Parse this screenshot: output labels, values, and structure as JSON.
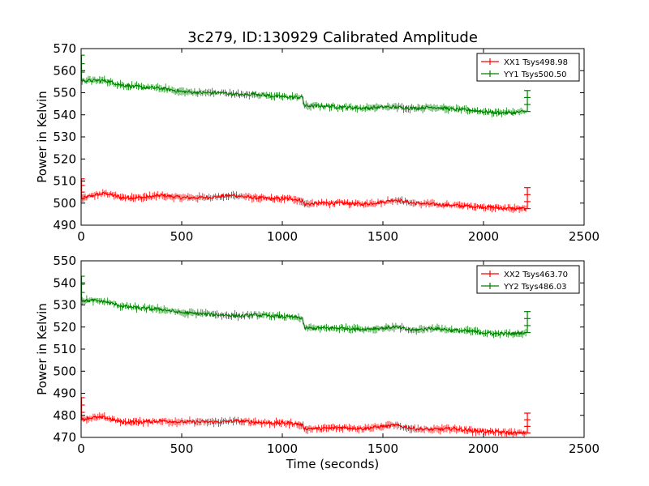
{
  "figure": {
    "title": "3c279, ID:130929 Calibrated Amplitude",
    "xlabel": "Time (seconds)"
  },
  "chart_data": [
    {
      "type": "line",
      "ylabel": "Power in Kelvin",
      "xlim": [
        0,
        2500
      ],
      "ylim": [
        490,
        570
      ],
      "xticks": [
        "0",
        "500",
        "1000",
        "1500",
        "2000",
        "2500"
      ],
      "yticks": [
        "490",
        "500",
        "510",
        "520",
        "530",
        "540",
        "550",
        "560",
        "570"
      ],
      "legend_position": "top-right",
      "grid": false,
      "series": [
        {
          "name": "XX1 Tsys498.98",
          "color": "#ff0000",
          "x": [
            5,
            20,
            60,
            120,
            200,
            300,
            400,
            500,
            600,
            700,
            760,
            850,
            950,
            1050,
            1100,
            1110,
            1200,
            1300,
            1400,
            1500,
            1560,
            1650,
            1750,
            1850,
            1950,
            2050,
            2150,
            2210
          ],
          "y": [
            502,
            502.5,
            503.5,
            504.5,
            502.5,
            502.5,
            503.5,
            502.5,
            502.5,
            503,
            503.5,
            502.5,
            502,
            502,
            501,
            499.5,
            500,
            500,
            499.5,
            500.5,
            501.5,
            500,
            499.5,
            499,
            498.5,
            498,
            497.5,
            497.5
          ],
          "spikes": [
            {
              "x": 2,
              "y": 511
            },
            {
              "x": 2218,
              "y": 507
            }
          ]
        },
        {
          "name": "YY1 Tsys500.50",
          "color": "#008000",
          "x": [
            5,
            20,
            60,
            120,
            200,
            300,
            400,
            500,
            600,
            700,
            800,
            860,
            950,
            1050,
            1100,
            1110,
            1200,
            1300,
            1400,
            1500,
            1560,
            1650,
            1750,
            1850,
            1950,
            2050,
            2150,
            2210
          ],
          "y": [
            555.5,
            555.5,
            555.5,
            555.5,
            553.5,
            552.5,
            552,
            550.5,
            550,
            550,
            549,
            549.5,
            548.5,
            548,
            548,
            544,
            544,
            543.5,
            543,
            543.5,
            543.5,
            543,
            543.5,
            542.5,
            542,
            541,
            541,
            541.5
          ],
          "spikes": [
            {
              "x": 2,
              "y": 567
            },
            {
              "x": 2218,
              "y": 551
            }
          ]
        }
      ]
    },
    {
      "type": "line",
      "ylabel": "Power in Kelvin",
      "xlim": [
        0,
        2500
      ],
      "ylim": [
        470,
        550
      ],
      "xticks": [
        "0",
        "500",
        "1000",
        "1500",
        "2000",
        "2500"
      ],
      "yticks": [
        "470",
        "480",
        "490",
        "500",
        "510",
        "520",
        "530",
        "540",
        "550"
      ],
      "legend_position": "top-right",
      "grid": false,
      "series": [
        {
          "name": "XX2 Tsys463.70",
          "color": "#ff0000",
          "x": [
            5,
            20,
            60,
            120,
            200,
            300,
            400,
            500,
            600,
            700,
            760,
            850,
            950,
            1050,
            1100,
            1110,
            1200,
            1300,
            1400,
            1500,
            1560,
            1650,
            1750,
            1850,
            1950,
            2050,
            2150,
            2210
          ],
          "y": [
            478,
            478.5,
            479,
            479,
            477,
            477,
            477.5,
            477,
            477,
            477,
            477.5,
            477,
            476.5,
            476.5,
            475.5,
            474,
            474,
            474.5,
            474,
            475,
            475.5,
            474,
            473.5,
            474,
            473,
            472.5,
            472,
            472
          ],
          "spikes": [
            {
              "x": 2,
              "y": 488
            },
            {
              "x": 2218,
              "y": 481
            }
          ]
        },
        {
          "name": "YY2 Tsys486.03",
          "color": "#008000",
          "x": [
            5,
            20,
            60,
            120,
            200,
            300,
            400,
            500,
            600,
            700,
            800,
            860,
            950,
            1050,
            1100,
            1110,
            1200,
            1300,
            1400,
            1500,
            1560,
            1650,
            1750,
            1850,
            1950,
            2050,
            2150,
            2210
          ],
          "y": [
            532,
            532,
            532,
            531.5,
            529.5,
            528.5,
            528,
            526.5,
            526,
            525.5,
            525,
            525.5,
            525,
            524.5,
            524,
            519.5,
            519.5,
            519.5,
            519,
            519.5,
            520,
            518.5,
            519.5,
            518.5,
            518,
            517,
            517,
            517.5
          ],
          "spikes": [
            {
              "x": 2,
              "y": 543
            },
            {
              "x": 2218,
              "y": 527
            }
          ]
        }
      ]
    }
  ]
}
